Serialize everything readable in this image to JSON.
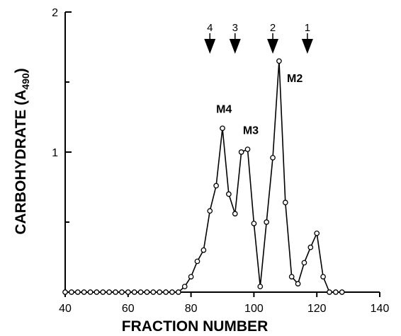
{
  "chart_data": {
    "type": "line",
    "xlabel": "FRACTION NUMBER",
    "ylabel_main": "CARBOHYDRATE (A",
    "ylabel_sub": "490",
    "ylabel_close": ")",
    "xlim": [
      40,
      140
    ],
    "ylim": [
      0,
      2
    ],
    "xticks": [
      40,
      60,
      80,
      100,
      120,
      140
    ],
    "yticks_labeled": [
      1,
      2
    ],
    "yticks_minor": [
      0.5,
      1.5
    ],
    "grid": false,
    "series": [
      {
        "marker": "open-circle",
        "x": [
          40,
          42,
          44,
          46,
          48,
          50,
          52,
          54,
          56,
          58,
          60,
          62,
          64,
          66,
          68,
          70,
          72,
          74,
          76,
          78,
          80,
          82,
          84,
          86,
          88,
          90,
          92,
          94,
          96,
          98,
          100,
          102,
          104,
          106,
          108,
          110,
          112,
          114,
          116,
          118,
          120,
          122,
          124,
          126,
          128
        ],
        "y": [
          0,
          0,
          0,
          0,
          0,
          0,
          0,
          0,
          0,
          0,
          0,
          0,
          0,
          0,
          0,
          0,
          0,
          0,
          0,
          0.04,
          0.11,
          0.22,
          0.3,
          0.58,
          0.76,
          1.17,
          0.7,
          0.56,
          1.0,
          1.02,
          0.49,
          0.04,
          0.5,
          0.96,
          1.65,
          0.64,
          0.11,
          0.06,
          0.21,
          0.32,
          0.42,
          0.11,
          0,
          0,
          0
        ]
      }
    ],
    "peak_labels": [
      {
        "text": "M4",
        "x": 90.5,
        "y": 1.28
      },
      {
        "text": "M3",
        "x": 99,
        "y": 1.13
      },
      {
        "text": "M2",
        "x": 113,
        "y": 1.5
      }
    ],
    "markers": [
      {
        "label": "4",
        "x": 86
      },
      {
        "label": "3",
        "x": 94
      },
      {
        "label": "2",
        "x": 106
      },
      {
        "label": "1",
        "x": 117
      }
    ],
    "colors": {
      "line": "#000000",
      "marker_fill": "#ffffff"
    }
  }
}
